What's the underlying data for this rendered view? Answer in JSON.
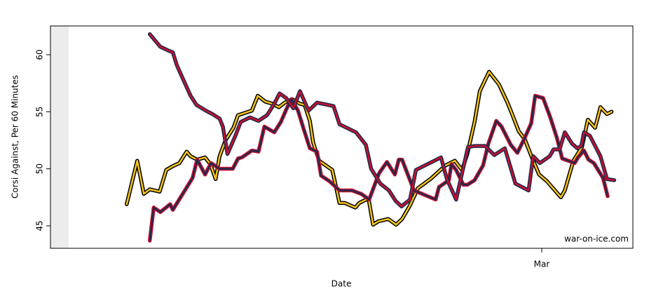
{
  "chart_data": {
    "type": "line",
    "ylabel": "Corsi Against, Per 60 Minutes",
    "xlabel": "Date",
    "annotation": "war-on-ice.com",
    "xlim": [
      0.43,
      88.83
    ],
    "xticks": [
      {
        "value": 75,
        "label": "Mar"
      }
    ],
    "ylim": [
      43.03,
      62.52
    ],
    "yticks": [
      45,
      50,
      55,
      60
    ],
    "series": [
      {
        "color": "#f5c518",
        "edge_color": "#000000",
        "x": [
          12.0,
          13.6,
          14.6,
          15.5,
          17.0,
          18.0,
          18.9,
          20.0,
          21.1,
          21.7,
          22.7,
          23.9,
          24.7,
          25.5,
          26.1,
          27.0,
          28.2,
          28.9,
          31.0,
          31.9,
          33.0,
          34.1,
          35.1,
          36.0,
          37.1,
          38.3,
          39.0,
          39.8,
          40.3,
          41.2,
          43.2,
          44.3,
          45.1,
          46.7,
          47.3,
          48.7,
          49.4,
          50.2,
          51.7,
          52.9,
          53.8,
          55.0,
          56.2,
          58.1,
          60.4,
          61.8,
          62.9,
          63.7,
          64.8,
          65.6,
          67.0,
          68.5,
          69.8,
          70.5,
          71.5,
          72.4,
          73.5,
          74.6,
          75.8,
          77.9,
          78.5,
          79.8,
          81.1,
          82.0,
          83.1,
          83.9,
          84.9,
          85.6
        ],
        "values": [
          46.9,
          50.7,
          47.8,
          48.2,
          48.0,
          49.9,
          50.2,
          50.5,
          51.5,
          51.1,
          50.8,
          51.0,
          50.4,
          49.1,
          51.1,
          52.5,
          53.6,
          54.7,
          55.1,
          56.4,
          55.9,
          55.7,
          55.4,
          55.8,
          56.1,
          55.7,
          55.6,
          54.2,
          52.3,
          50.7,
          49.9,
          47.0,
          47.0,
          46.6,
          47.0,
          47.4,
          45.1,
          45.4,
          45.6,
          45.1,
          45.6,
          46.8,
          48.3,
          49.1,
          50.3,
          50.7,
          49.9,
          51.3,
          54.1,
          56.8,
          58.5,
          57.4,
          55.8,
          54.8,
          53.3,
          52.6,
          51.0,
          49.5,
          48.9,
          47.5,
          48.1,
          50.7,
          51.9,
          54.3,
          53.6,
          55.4,
          54.8,
          55.0
        ]
      },
      {
        "color": "#1c2a4e",
        "edge_color": "#c8102e",
        "x": [
          15.5,
          16.1,
          17.1,
          18.6,
          19.0,
          20.5,
          22.0,
          22.7,
          23.9,
          24.8,
          26.1,
          28.1,
          28.9,
          29.5,
          31.0,
          32.0,
          32.9,
          34.4,
          35.4,
          36.3,
          37.0,
          38.0,
          38.8,
          39.8,
          40.9,
          41.5,
          42.8,
          44.3,
          46.2,
          47.6,
          48.8,
          50.3,
          51.5,
          52.7,
          53.3,
          53.8,
          55.6,
          58.9,
          59.4,
          60.9,
          61.3,
          62.0,
          63.1,
          63.7,
          64.8,
          66.1,
          66.9,
          68.1,
          68.9,
          70.3,
          71.3,
          72.4,
          73.4,
          74.0,
          75.2,
          76.3,
          77.3,
          78.1,
          80.0,
          80.5,
          81.4,
          82.1,
          82.9,
          84.3,
          85.0
        ],
        "values": [
          43.7,
          46.6,
          46.2,
          46.9,
          46.4,
          47.8,
          49.2,
          50.8,
          49.5,
          50.5,
          50.0,
          50.0,
          50.9,
          51.0,
          51.6,
          51.5,
          53.7,
          53.2,
          54.1,
          55.3,
          56.1,
          55.1,
          53.6,
          51.8,
          51.5,
          49.4,
          48.9,
          48.1,
          48.1,
          47.8,
          47.3,
          49.6,
          50.6,
          49.5,
          50.8,
          50.8,
          48.1,
          47.3,
          48.4,
          49.0,
          50.4,
          49.9,
          48.6,
          48.6,
          49.0,
          50.3,
          52.2,
          54.2,
          53.7,
          52.1,
          51.4,
          52.7,
          54.0,
          56.4,
          56.2,
          54.5,
          52.7,
          50.9,
          50.5,
          51.0,
          51.6,
          50.8,
          50.5,
          49.2,
          47.6
        ]
      },
      {
        "color": "#c8102e",
        "edge_color": "#1c2a4e",
        "x": [
          15.5,
          17.1,
          18.2,
          19.0,
          19.6,
          20.6,
          21.7,
          22.6,
          24.0,
          25.0,
          26.1,
          26.6,
          27.3,
          28.5,
          29.3,
          30.7,
          32.0,
          33.3,
          34.3,
          35.2,
          36.2,
          37.3,
          38.3,
          39.6,
          40.9,
          43.4,
          44.3,
          46.8,
          48.3,
          49.1,
          50.5,
          51.8,
          52.8,
          53.7,
          55.0,
          55.9,
          59.7,
          60.6,
          62.0,
          63.8,
          64.8,
          66.4,
          67.8,
          69.4,
          71.0,
          73.0,
          73.7,
          74.7,
          76.2,
          76.8,
          77.7,
          78.5,
          79.6,
          80.4,
          81.0,
          81.4,
          82.3,
          83.9,
          84.9,
          86.0
        ],
        "values": [
          61.8,
          60.7,
          60.4,
          60.2,
          59.1,
          57.8,
          56.4,
          55.6,
          55.1,
          54.8,
          54.4,
          53.7,
          51.3,
          52.9,
          54.1,
          54.5,
          54.2,
          54.7,
          55.6,
          56.6,
          56.2,
          55.3,
          56.8,
          55.1,
          55.8,
          55.5,
          53.9,
          53.2,
          52.1,
          50.0,
          48.7,
          48.1,
          47.2,
          46.7,
          47.3,
          49.9,
          51.0,
          49.1,
          47.3,
          51.9,
          52.0,
          52.0,
          51.2,
          51.8,
          48.7,
          48.1,
          51.1,
          50.5,
          51.1,
          51.7,
          51.7,
          53.2,
          52.2,
          51.8,
          52.0,
          53.2,
          52.9,
          51.1,
          49.1,
          49.0
        ]
      }
    ]
  }
}
